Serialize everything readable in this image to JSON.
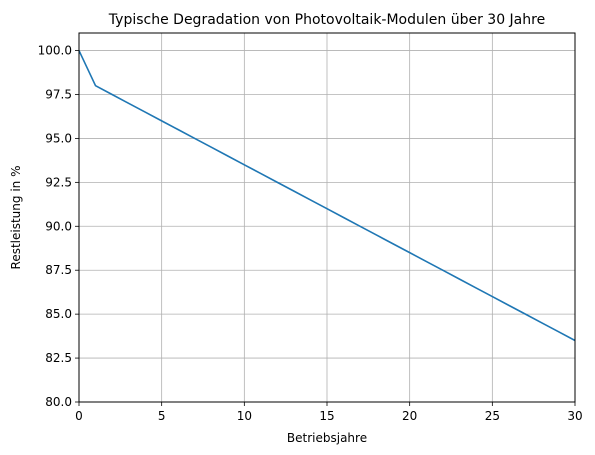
{
  "chart_data": {
    "type": "line",
    "title": "Typische Degradation von Photovoltaik-Modulen über 30 Jahre",
    "xlabel": "Betriebsjahre",
    "ylabel": "Restleistung in %",
    "xlim": [
      0,
      30
    ],
    "ylim": [
      80,
      101
    ],
    "xticks": [
      0,
      5,
      10,
      15,
      20,
      25,
      30
    ],
    "yticks": [
      80.0,
      82.5,
      85.0,
      87.5,
      90.0,
      92.5,
      95.0,
      97.5,
      100.0
    ],
    "xtick_labels": [
      "0",
      "5",
      "10",
      "15",
      "20",
      "25",
      "30"
    ],
    "ytick_labels": [
      "80.0",
      "82.5",
      "85.0",
      "87.5",
      "90.0",
      "92.5",
      "95.0",
      "97.5",
      "100.0"
    ],
    "grid": true,
    "series": [
      {
        "color": "#1f77b4",
        "x": [
          0,
          1,
          2,
          3,
          4,
          5,
          6,
          7,
          8,
          9,
          10,
          11,
          12,
          13,
          14,
          15,
          16,
          17,
          18,
          19,
          20,
          21,
          22,
          23,
          24,
          25,
          26,
          27,
          28,
          29,
          30
        ],
        "y": [
          100.0,
          98.0,
          97.5,
          97.0,
          96.5,
          96.0,
          95.5,
          95.0,
          94.5,
          94.0,
          93.5,
          93.0,
          92.5,
          92.0,
          91.5,
          91.0,
          90.5,
          90.0,
          89.5,
          89.0,
          88.5,
          88.0,
          87.5,
          87.0,
          86.5,
          86.0,
          85.5,
          85.0,
          84.5,
          84.0,
          83.5
        ]
      }
    ]
  }
}
